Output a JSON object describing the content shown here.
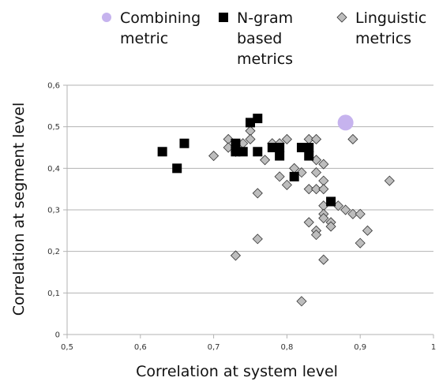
{
  "chart_data": {
    "type": "scatter",
    "x_label": "Correlation at system level",
    "y_label": "Correlation at segment level",
    "xlim": [
      0.5,
      1.0
    ],
    "ylim": [
      0,
      0.6
    ],
    "xticks": [
      {
        "value": 0.5,
        "label": "0,5"
      },
      {
        "value": 0.6,
        "label": "0,6"
      },
      {
        "value": 0.7,
        "label": "0,7"
      },
      {
        "value": 0.8,
        "label": "0,8"
      },
      {
        "value": 0.9,
        "label": "0,9"
      },
      1
    ],
    "yticks": [
      0,
      {
        "value": 0.1,
        "label": "0,1"
      },
      {
        "value": 0.2,
        "label": "0,2"
      },
      {
        "value": 0.3,
        "label": "0,3"
      },
      {
        "value": 0.4,
        "label": "0,4"
      },
      {
        "value": 0.5,
        "label": "0,5"
      },
      {
        "value": 0.6,
        "label": "0,6"
      }
    ],
    "grid": true,
    "legend": "top",
    "series": [
      {
        "name": "Combining metric",
        "color": "#c6b3ee",
        "marker": "circle",
        "x": [
          0.88
        ],
        "y": [
          0.51
        ]
      },
      {
        "name": "N-gram based metrics",
        "color": "#000000",
        "marker": "square",
        "x": [
          0.63,
          0.65,
          0.66,
          0.73,
          0.73,
          0.74,
          0.75,
          0.76,
          0.76,
          0.78,
          0.79,
          0.79,
          0.81,
          0.82,
          0.83,
          0.83,
          0.86
        ],
        "y": [
          0.44,
          0.4,
          0.46,
          0.46,
          0.44,
          0.44,
          0.51,
          0.52,
          0.44,
          0.45,
          0.45,
          0.43,
          0.38,
          0.45,
          0.45,
          0.43,
          0.32
        ]
      },
      {
        "name": "Linguistic metrics",
        "color": "#bdbdbd",
        "marker": "diamond",
        "x": [
          0.7,
          0.72,
          0.72,
          0.73,
          0.74,
          0.75,
          0.75,
          0.76,
          0.76,
          0.73,
          0.77,
          0.78,
          0.79,
          0.79,
          0.8,
          0.8,
          0.81,
          0.82,
          0.82,
          0.83,
          0.83,
          0.83,
          0.84,
          0.84,
          0.84,
          0.84,
          0.84,
          0.84,
          0.85,
          0.85,
          0.85,
          0.85,
          0.85,
          0.85,
          0.85,
          0.86,
          0.86,
          0.87,
          0.88,
          0.89,
          0.89,
          0.9,
          0.9,
          0.91,
          0.94
        ],
        "y": [
          0.43,
          0.47,
          0.45,
          0.44,
          0.46,
          0.49,
          0.47,
          0.34,
          0.23,
          0.19,
          0.42,
          0.46,
          0.46,
          0.38,
          0.47,
          0.36,
          0.4,
          0.39,
          0.08,
          0.47,
          0.35,
          0.27,
          0.47,
          0.42,
          0.39,
          0.35,
          0.25,
          0.24,
          0.41,
          0.37,
          0.35,
          0.31,
          0.29,
          0.28,
          0.18,
          0.27,
          0.26,
          0.31,
          0.3,
          0.47,
          0.29,
          0.29,
          0.22,
          0.25,
          0.37
        ]
      }
    ]
  }
}
